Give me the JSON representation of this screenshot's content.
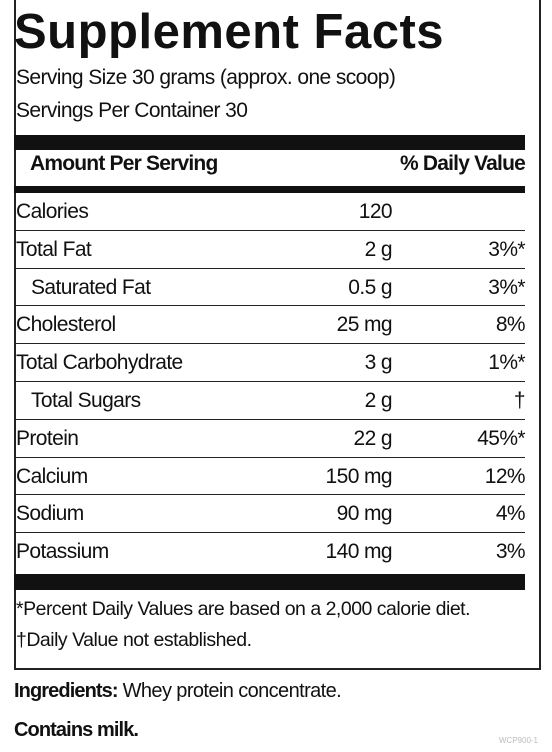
{
  "label": {
    "title": "Supplement Facts",
    "serving_size": "Serving Size 30 grams (approx. one scoop)",
    "servings_per_container": "Servings Per Container 30",
    "header": {
      "amount": "Amount Per Serving",
      "daily_value": "% Daily Value"
    },
    "rows": [
      [
        "Calories",
        "120",
        null
      ],
      [
        "Total Fat",
        "2 g",
        "3%*"
      ],
      [
        "Saturated Fat",
        "0.5 g",
        "3%*"
      ],
      [
        "Cholesterol",
        "25 mg",
        "8%"
      ],
      [
        "Total Carbohydrate",
        "3 g",
        "1%*"
      ],
      [
        "Total Sugars",
        "2 g",
        "†"
      ],
      [
        "Protein",
        "22 g",
        "45%*"
      ],
      [
        "Calcium",
        "150 mg",
        "12%"
      ],
      [
        "Sodium",
        "90 mg",
        "4%"
      ],
      [
        "Potassium",
        "140 mg",
        "3%"
      ]
    ],
    "footnotes": [
      "*Percent Daily Values are based on a 2,000 calorie diet.",
      "†Daily Value not established."
    ]
  },
  "ingredients": {
    "label": "Ingredients:",
    "text": "Whey protein concentrate."
  },
  "contains": "Contains milk.",
  "code": "WCP900-1"
}
